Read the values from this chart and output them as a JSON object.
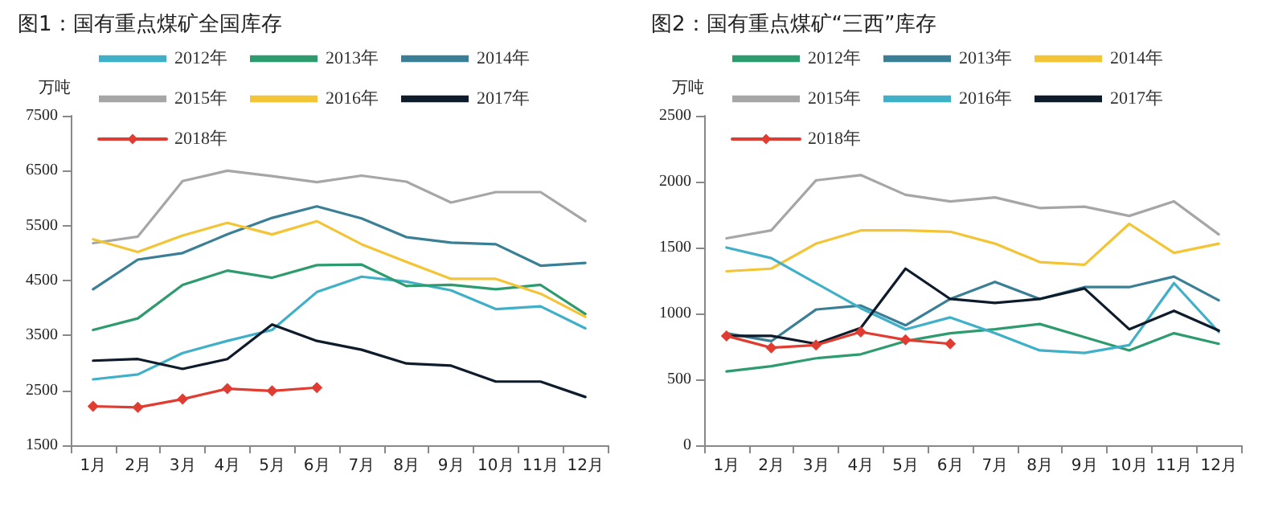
{
  "chart_data": [
    {
      "type": "line",
      "title": "图1：国有重点煤矿全国库存",
      "ylabel": "万吨",
      "categories": [
        "1月",
        "2月",
        "3月",
        "4月",
        "5月",
        "6月",
        "7月",
        "8月",
        "9月",
        "10月",
        "11月",
        "12月"
      ],
      "ylim": [
        1500,
        7500
      ],
      "yticks": [
        1500,
        2500,
        3500,
        4500,
        5500,
        6500,
        7500
      ],
      "grid": false,
      "legend": "top",
      "marker": "none",
      "line_style": "solid",
      "series": [
        {
          "name": "2012年",
          "color": "#3fb0c8",
          "values": [
            2700,
            2790,
            3180,
            3400,
            3600,
            4290,
            4570,
            4480,
            4320,
            3980,
            4030,
            3630
          ]
        },
        {
          "name": "2013年",
          "color": "#2e9b6e",
          "values": [
            3600,
            3810,
            4420,
            4680,
            4550,
            4780,
            4790,
            4400,
            4420,
            4340,
            4420,
            3890
          ]
        },
        {
          "name": "2014年",
          "color": "#3a7f95",
          "values": [
            4340,
            4880,
            5000,
            5340,
            5640,
            5850,
            5630,
            5290,
            5190,
            5160,
            4770,
            4820
          ]
        },
        {
          "name": "2015年",
          "color": "#a6a6a6",
          "values": [
            5180,
            5300,
            6310,
            6500,
            6400,
            6290,
            6410,
            6300,
            5920,
            6110,
            6110,
            5580
          ]
        },
        {
          "name": "2016年",
          "color": "#f3c435",
          "values": [
            5250,
            5020,
            5320,
            5550,
            5340,
            5580,
            5160,
            4840,
            4530,
            4530,
            4260,
            3840
          ]
        },
        {
          "name": "2017年",
          "color": "#0d1b2a",
          "values": [
            3040,
            3070,
            2890,
            3070,
            3700,
            3400,
            3240,
            2990,
            2950,
            2660,
            2660,
            2380
          ]
        },
        {
          "name": "2018年",
          "color": "#e03c31",
          "marker": "diamond",
          "values": [
            2210,
            2190,
            2340,
            2530,
            2490,
            2550,
            null,
            null,
            null,
            null,
            null,
            null
          ]
        }
      ]
    },
    {
      "type": "line",
      "title": "图2：国有重点煤矿“三西”库存",
      "ylabel": "万吨",
      "categories": [
        "1月",
        "2月",
        "3月",
        "4月",
        "5月",
        "6月",
        "7月",
        "8月",
        "9月",
        "10月",
        "11月",
        "12月"
      ],
      "ylim": [
        0,
        2500
      ],
      "yticks": [
        0,
        500,
        1000,
        1500,
        2000,
        2500
      ],
      "grid": false,
      "legend": "top",
      "marker": "none",
      "line_style": "solid",
      "series": [
        {
          "name": "2012年",
          "color": "#2e9b6e",
          "values": [
            560,
            600,
            660,
            690,
            790,
            850,
            880,
            920,
            820,
            720,
            850,
            770
          ]
        },
        {
          "name": "2013年",
          "color": "#3a7f95",
          "values": [
            850,
            790,
            1030,
            1060,
            910,
            1110,
            1240,
            1110,
            1200,
            1200,
            1280,
            1100
          ]
        },
        {
          "name": "2014年",
          "color": "#f3c435",
          "values": [
            1320,
            1340,
            1530,
            1630,
            1630,
            1620,
            1530,
            1390,
            1370,
            1680,
            1460,
            1530
          ]
        },
        {
          "name": "2015年",
          "color": "#a6a6a6",
          "values": [
            1570,
            1630,
            2010,
            2050,
            1900,
            1850,
            1880,
            1800,
            1810,
            1740,
            1850,
            1600
          ]
        },
        {
          "name": "2016年",
          "color": "#3fb0c8",
          "values": [
            1500,
            1420,
            1230,
            1040,
            880,
            970,
            850,
            720,
            700,
            760,
            1230,
            860
          ]
        },
        {
          "name": "2017年",
          "color": "#0d1b2a",
          "values": [
            830,
            830,
            770,
            890,
            1340,
            1110,
            1080,
            1110,
            1190,
            880,
            1020,
            870
          ]
        },
        {
          "name": "2018年",
          "color": "#e03c31",
          "marker": "diamond",
          "values": [
            830,
            740,
            760,
            860,
            800,
            770,
            null,
            null,
            null,
            null,
            null,
            null
          ]
        }
      ]
    }
  ]
}
